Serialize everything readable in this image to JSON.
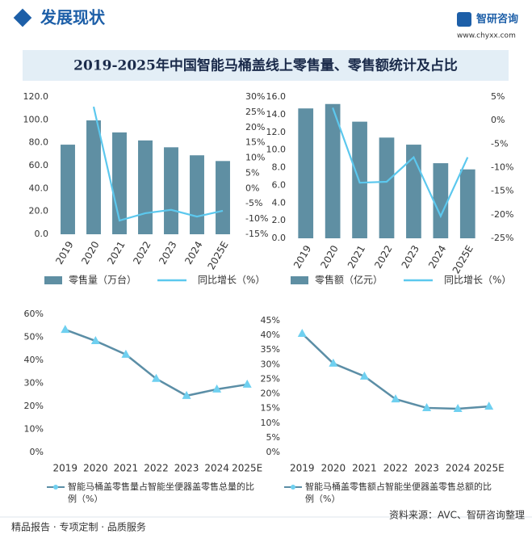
{
  "header": {
    "section": "发展现状",
    "brand": "智研咨询",
    "site": "www.chyxx.com"
  },
  "title": "2019-2025年中国智能马桶盖线上零售量、零售额统计及占比",
  "chart_data": [
    {
      "type": "bar",
      "categories": [
        "2019",
        "2020",
        "2021",
        "2022",
        "2023",
        "2024",
        "2025E"
      ],
      "series": [
        {
          "name": "零售量（万台）",
          "color": "#5f8fa3",
          "values": [
            78.3,
            99.5,
            89,
            82,
            76,
            69,
            64
          ]
        },
        {
          "name": "同比增长（%）",
          "color": "#5cc8ee",
          "axis": "y2",
          "values": [
            null,
            26.8,
            -10.5,
            -8.1,
            -7,
            -9.2,
            -7.3
          ]
        }
      ],
      "ylim": [
        0,
        120
      ],
      "yticks": [
        {
          "value": 0,
          "label": "0.0"
        },
        {
          "value": 20,
          "label": "20.0"
        },
        {
          "value": 40,
          "label": "40.0"
        },
        {
          "value": 60,
          "label": "60.0"
        },
        {
          "value": 80,
          "label": "80.0"
        },
        {
          "value": 100,
          "label": "100.0"
        },
        {
          "value": 120,
          "label": "120.0"
        }
      ],
      "y2lim": [
        -15,
        30
      ],
      "y2ticks": [
        {
          "value": -15,
          "label": "-15%"
        },
        {
          "value": -10,
          "label": "-10%"
        },
        {
          "value": -5,
          "label": "-5%"
        },
        {
          "value": 0,
          "label": "0%"
        },
        {
          "value": 5,
          "label": "5%"
        },
        {
          "value": 10,
          "label": "10%"
        },
        {
          "value": 15,
          "label": "15%"
        },
        {
          "value": 20,
          "label": "20%"
        },
        {
          "value": 25,
          "label": "25%"
        },
        {
          "value": 30,
          "label": "30%"
        }
      ],
      "grid": false
    },
    {
      "type": "bar",
      "categories": [
        "2019",
        "2020",
        "2021",
        "2022",
        "2023",
        "2024",
        "2025E"
      ],
      "series": [
        {
          "name": "零售额（亿元）",
          "color": "#5f8fa3",
          "values": [
            14.7,
            15.2,
            13.2,
            11.4,
            10.6,
            8.5,
            7.8
          ]
        },
        {
          "name": "同比增长（%）",
          "color": "#5cc8ee",
          "axis": "y2",
          "values": [
            null,
            2.7,
            -13.2,
            -13,
            -7.8,
            -20.3,
            -7.8
          ]
        }
      ],
      "ylim": [
        0,
        16
      ],
      "yticks": [
        {
          "value": 0,
          "label": "0.0"
        },
        {
          "value": 2,
          "label": "2.0"
        },
        {
          "value": 4,
          "label": "4.0"
        },
        {
          "value": 6,
          "label": "6.0"
        },
        {
          "value": 8,
          "label": "8.0"
        },
        {
          "value": 10,
          "label": "10.0"
        },
        {
          "value": 12,
          "label": "12.0"
        },
        {
          "value": 14,
          "label": "14.0"
        },
        {
          "value": 16,
          "label": "16.0"
        }
      ],
      "y2lim": [
        -25,
        5
      ],
      "y2ticks": [
        {
          "value": -25,
          "label": "-25%"
        },
        {
          "value": -20,
          "label": "-20%"
        },
        {
          "value": -15,
          "label": "-15%"
        },
        {
          "value": -10,
          "label": "-10%"
        },
        {
          "value": -5,
          "label": "-5%"
        },
        {
          "value": 0,
          "label": "0%"
        },
        {
          "value": 5,
          "label": "5%"
        }
      ],
      "grid": false
    },
    {
      "type": "line",
      "categories": [
        "2019",
        "2020",
        "2021",
        "2022",
        "2023",
        "2024",
        "2025E"
      ],
      "series": [
        {
          "name": "智能马桶盖零售量占智能坐便器盖零售总量的比例（%）",
          "color": "#5b8ea6",
          "marker_color": "#6fd0f0",
          "values": [
            53.3,
            48.4,
            42.5,
            32,
            24.6,
            27.4,
            29.5
          ]
        }
      ],
      "ylim": [
        0,
        60
      ],
      "yticks": [
        {
          "value": 0,
          "label": "0%"
        },
        {
          "value": 10,
          "label": "10%"
        },
        {
          "value": 20,
          "label": "20%"
        },
        {
          "value": 30,
          "label": "30%"
        },
        {
          "value": 40,
          "label": "40%"
        },
        {
          "value": 50,
          "label": "50%"
        },
        {
          "value": 60,
          "label": "60%"
        }
      ],
      "grid": false
    },
    {
      "type": "line",
      "categories": [
        "2019",
        "2020",
        "2021",
        "2022",
        "2023",
        "2024",
        "2025E"
      ],
      "series": [
        {
          "name": "智能马桶盖零售额占智能坐便器盖零售总额的比例（%）",
          "color": "#5b8ea6",
          "marker_color": "#6fd0f0",
          "values": [
            40.6,
            30.4,
            26,
            18.2,
            15.2,
            14.9,
            15.7
          ]
        }
      ],
      "ylim": [
        0,
        45
      ],
      "yticks": [
        {
          "value": 0,
          "label": "0%"
        },
        {
          "value": 5,
          "label": "5%"
        },
        {
          "value": 10,
          "label": "10%"
        },
        {
          "value": 15,
          "label": "15%"
        },
        {
          "value": 20,
          "label": "20%"
        },
        {
          "value": 25,
          "label": "25%"
        },
        {
          "value": 30,
          "label": "30%"
        },
        {
          "value": 35,
          "label": "35%"
        },
        {
          "value": 40,
          "label": "40%"
        },
        {
          "value": 45,
          "label": "45%"
        }
      ],
      "grid": false
    }
  ],
  "footer": {
    "slogan": "精品报告 · 专项定制 · 品质服务",
    "source": "资料来源：AVC、智研咨询整理"
  }
}
